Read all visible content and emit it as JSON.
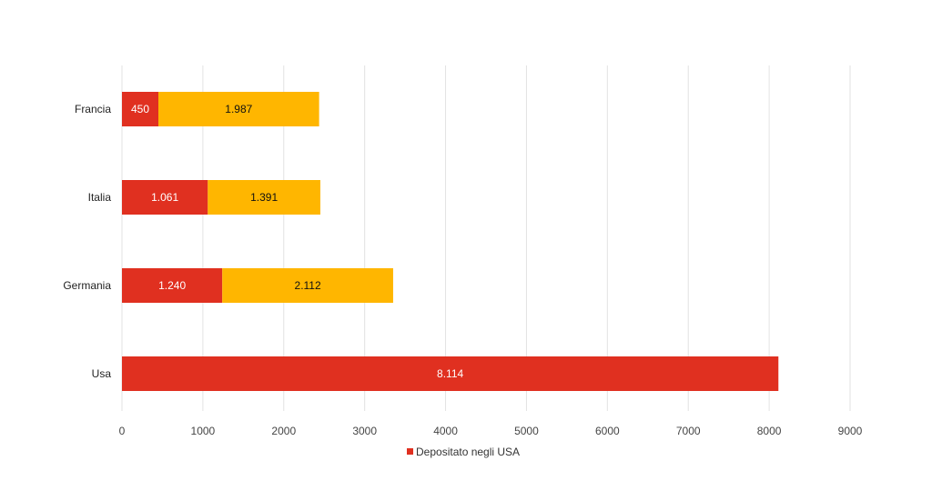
{
  "chart_data": {
    "type": "bar",
    "orientation": "horizontal",
    "stacked": true,
    "categories": [
      "Francia",
      "Italia",
      "Germania",
      "Usa"
    ],
    "series": [
      {
        "name": "Depositato negli USA",
        "color": "#e03020",
        "label_color": "#ffffff",
        "values": [
          450,
          1061,
          1240,
          8114
        ],
        "labels": [
          "450",
          "1.061",
          "1.240",
          "8.114"
        ]
      },
      {
        "color": "#ffb600",
        "label_color": "#111111",
        "values": [
          1987,
          1391,
          2112,
          null
        ],
        "labels": [
          "1.987",
          "1.391",
          "2.112",
          ""
        ]
      }
    ],
    "x_ticks": [
      "0",
      "1000",
      "2000",
      "3000",
      "4000",
      "5000",
      "6000",
      "7000",
      "8000",
      "9000"
    ],
    "xlim": [
      0,
      9000
    ],
    "grid": true,
    "legend": {
      "position": "bottom",
      "entries": [
        "Depositato negli USA"
      ]
    }
  }
}
